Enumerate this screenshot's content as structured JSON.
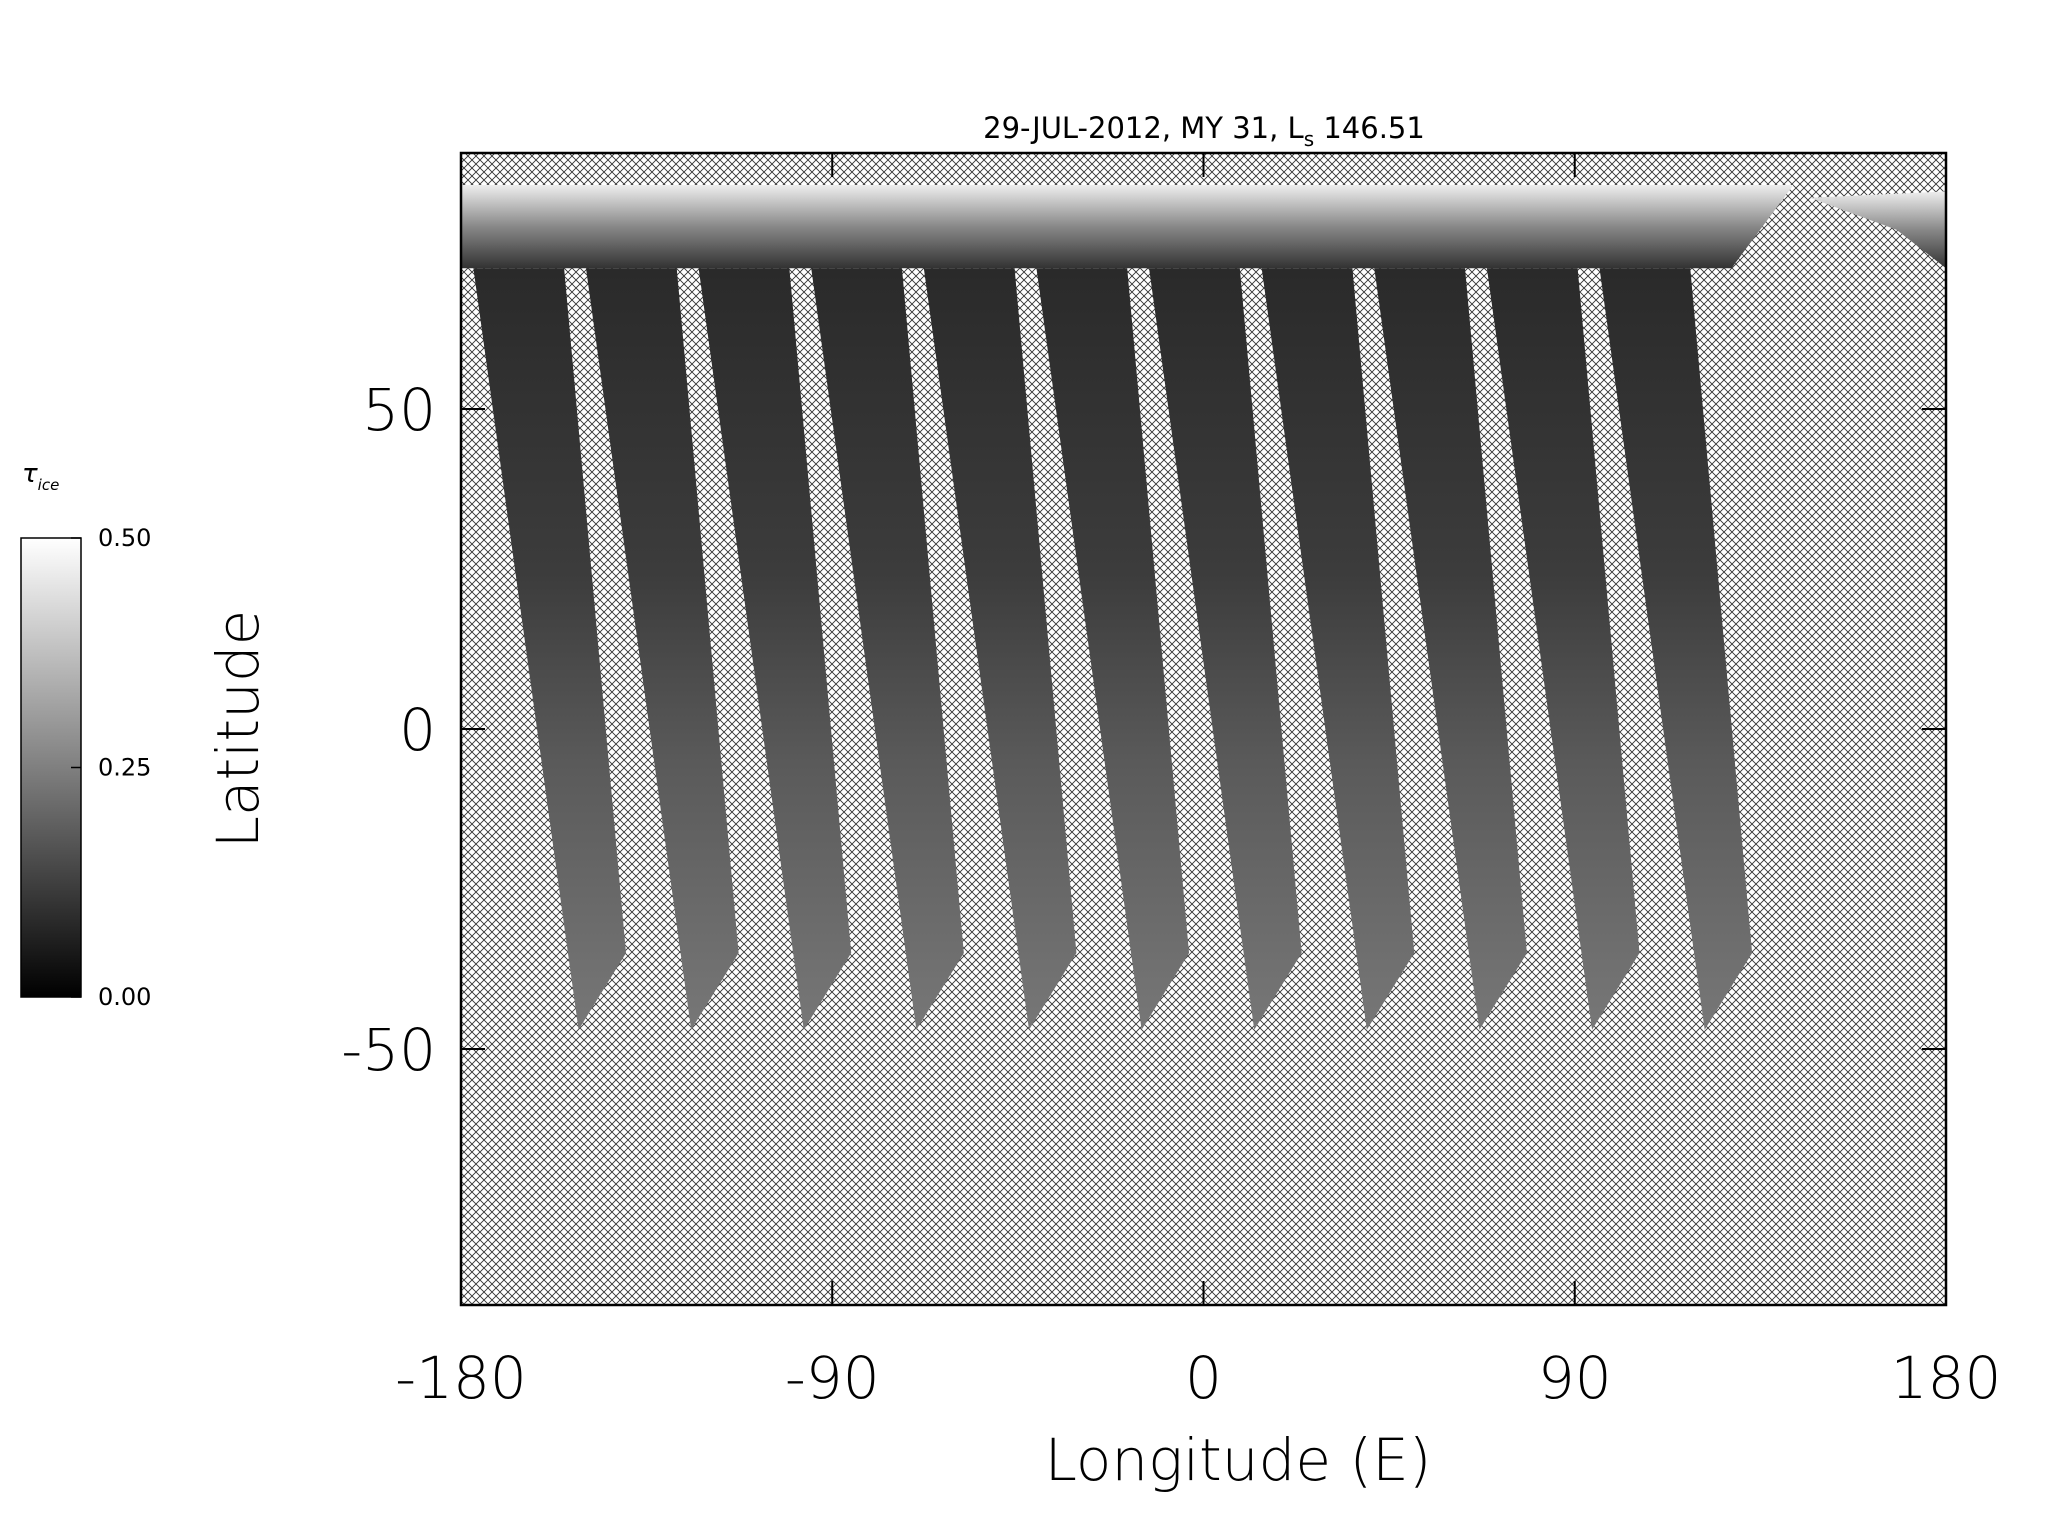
{
  "chart_data": {
    "type": "map",
    "title_parts": [
      "29-JUL-2012, MY 31,  L",
      "s",
      " 146.51"
    ],
    "xlabel": "Longitude (E)",
    "ylabel": "Latitude",
    "xlim": [
      -180,
      180
    ],
    "ylim": [
      -90,
      90
    ],
    "xticks": [
      -180,
      -90,
      0,
      90,
      180
    ],
    "yticks": [
      -50,
      0,
      50
    ],
    "colorbar": {
      "label": "τ",
      "label_sub": "ice",
      "lim": [
        0,
        0.5
      ],
      "ticks": [
        {
          "value": 0,
          "label": "0.00"
        },
        {
          "value": 0.25,
          "label": "0.25"
        },
        {
          "value": 0.5,
          "label": "0.50"
        }
      ]
    },
    "swaths": [
      {
        "lon": [
          -180,
          143,
          128,
          -180
        ],
        "lat": [
          85,
          85,
          72,
          72
        ]
      },
      {
        "lon": [
          147,
          180,
          180,
          168
        ],
        "lat": [
          83,
          84,
          72,
          78
        ]
      },
      {
        "lon": [
          -177,
          -155,
          -140,
          -151.5
        ],
        "lat": [
          72,
          72,
          -35,
          -47
        ]
      },
      {
        "lon": [
          -149.7,
          -127.7,
          -112.7,
          -124.2
        ],
        "lat": [
          72,
          72,
          -35,
          -47
        ]
      },
      {
        "lon": [
          -122.4,
          -100.4,
          -85.4,
          -96.9
        ],
        "lat": [
          72,
          72,
          -35,
          -47
        ]
      },
      {
        "lon": [
          -95.1,
          -73.1,
          -58.1,
          -69.6
        ],
        "lat": [
          72,
          72,
          -35,
          -47
        ]
      },
      {
        "lon": [
          -67.8,
          -45.8,
          -30.8,
          -42.3
        ],
        "lat": [
          72,
          72,
          -35,
          -47
        ]
      },
      {
        "lon": [
          -40.5,
          -18.5,
          -3.5,
          -15
        ],
        "lat": [
          72,
          72,
          -35,
          -47
        ]
      },
      {
        "lon": [
          -13.2,
          8.8,
          23.8,
          12.3
        ],
        "lat": [
          72,
          72,
          -35,
          -47
        ]
      },
      {
        "lon": [
          14.1,
          36.1,
          51.1,
          39.6
        ],
        "lat": [
          72,
          72,
          -35,
          -47
        ]
      },
      {
        "lon": [
          41.4,
          63.4,
          78.4,
          66.9
        ],
        "lat": [
          72,
          72,
          -35,
          -47
        ]
      },
      {
        "lon": [
          68.7,
          90.7,
          105.7,
          94.2
        ],
        "lat": [
          72,
          72,
          -35,
          -47
        ]
      },
      {
        "lon": [
          96,
          118,
          133,
          121.5
        ],
        "lat": [
          72,
          72,
          -35,
          -47
        ]
      }
    ]
  }
}
